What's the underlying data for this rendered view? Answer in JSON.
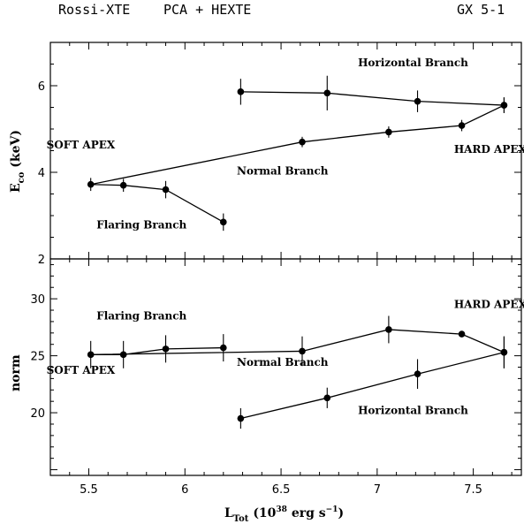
{
  "header": {
    "left": "Rossi-XTE",
    "middle": "PCA + HEXTE",
    "right": "GX 5-1"
  },
  "chart_data": [
    {
      "type": "line",
      "panel": "top",
      "ylabel_main": "E",
      "ylabel_sub": "co",
      "ylabel_rest": "(keV)",
      "xlim": [
        5.3,
        7.75
      ],
      "ylim": [
        2,
        7
      ],
      "yticks": [
        2,
        4,
        6
      ],
      "annotations": [
        {
          "text": "Horizontal Branch",
          "x": 6.9,
          "y": 6.45
        },
        {
          "text": "SOFT APEX",
          "x": 5.28,
          "y": 4.55
        },
        {
          "text": "HARD APEX",
          "x": 7.4,
          "y": 4.45
        },
        {
          "text": "Normal Branch",
          "x": 6.27,
          "y": 3.95
        },
        {
          "text": "Flaring Branch",
          "x": 5.54,
          "y": 2.7
        }
      ],
      "series": [
        {
          "x": [
            5.51,
            5.68,
            5.9,
            6.2,
            6.61,
            7.06,
            7.44,
            7.66
          ],
          "y": [
            3.72,
            3.7,
            3.6,
            2.85,
            4.7,
            4.93,
            5.08,
            5.55
          ],
          "x_err": [
            0,
            0,
            0,
            0,
            0,
            0,
            0,
            0
          ],
          "y_err": [
            0.15,
            0.15,
            0.2,
            0.2,
            0.12,
            0.13,
            0.13,
            0.18
          ],
          "connect_order": [
            3,
            2,
            1,
            0,
            4,
            5,
            6,
            7
          ]
        },
        {
          "x": [
            6.29,
            6.74,
            7.21,
            7.66
          ],
          "y": [
            5.86,
            5.83,
            5.64,
            5.55
          ],
          "x_err": [
            0,
            0,
            0,
            0
          ],
          "y_err": [
            0.3,
            0.4,
            0.25,
            0.18
          ]
        }
      ]
    },
    {
      "type": "line",
      "panel": "bottom",
      "ylabel": "norm",
      "xlabel_main": "L",
      "xlabel_sub": "Tot",
      "xlabel_paren_open": "(10",
      "xlabel_sup1": "38",
      "xlabel_mid": " erg s",
      "xlabel_sup2": "−1",
      "xlabel_paren_close": ")",
      "xlim": [
        5.3,
        7.75
      ],
      "ylim": [
        14.5,
        33.5
      ],
      "xticks": [
        5.5,
        6,
        6.5,
        7,
        7.5
      ],
      "xticklabels": [
        "5.5",
        "6",
        "6.5",
        "7",
        "7.5"
      ],
      "yticks": [
        20,
        25,
        30
      ],
      "annotations": [
        {
          "text": "Flaring Branch",
          "x": 5.54,
          "y": 28.2
        },
        {
          "text": "HARD APEX",
          "x": 7.4,
          "y": 29.2
        },
        {
          "text": "SOFT APEX",
          "x": 5.28,
          "y": 23.4
        },
        {
          "text": "Normal Branch",
          "x": 6.27,
          "y": 24.1
        },
        {
          "text": "Horizontal Branch",
          "x": 6.9,
          "y": 19.9
        }
      ],
      "series": [
        {
          "x": [
            6.2,
            5.9,
            5.68,
            5.51,
            6.61,
            7.06,
            7.44,
            7.66
          ],
          "y": [
            25.7,
            25.6,
            25.1,
            25.1,
            25.4,
            27.3,
            26.9,
            25.3
          ],
          "y_err": [
            1.2,
            1.2,
            1.2,
            1.2,
            1.3,
            1.2,
            0,
            1.4
          ],
          "connect_order": [
            0,
            1,
            2,
            3,
            4,
            5,
            6,
            7
          ]
        },
        {
          "x": [
            6.29,
            6.74,
            7.21,
            7.66
          ],
          "y": [
            19.5,
            21.3,
            23.4,
            25.3
          ],
          "y_err": [
            0.9,
            0.9,
            1.3,
            1.4
          ]
        }
      ]
    }
  ]
}
